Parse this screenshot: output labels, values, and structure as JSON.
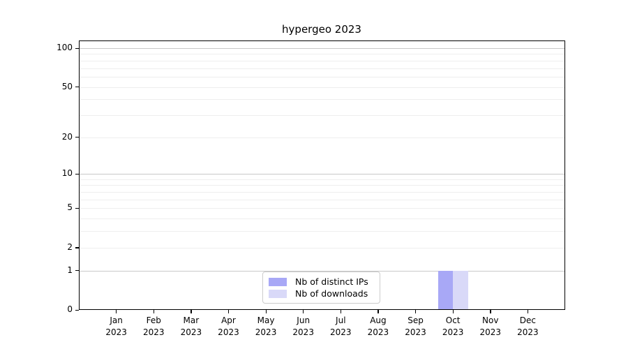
{
  "title": "hypergeo 2023",
  "colors": {
    "background": "#ffffff",
    "axis": "#000000",
    "text": "#000000",
    "grid_major": "#c8c8c8",
    "grid_minor": "#eeeeee",
    "legend_border": "#cccccc"
  },
  "chart_data": {
    "type": "bar",
    "title": "hypergeo 2023",
    "xlabel": "",
    "ylabel": "",
    "yscale": "log1p",
    "ylim": [
      0,
      100
    ],
    "categories": [
      "Jan 2023",
      "Feb 2023",
      "Mar 2023",
      "Apr 2023",
      "May 2023",
      "Jun 2023",
      "Jul 2023",
      "Aug 2023",
      "Sep 2023",
      "Oct 2023",
      "Nov 2023",
      "Dec 2023"
    ],
    "series": [
      {
        "name": "Nb of distinct IPs",
        "color": "#a8a8f6",
        "values": [
          0,
          0,
          0,
          0,
          0,
          0,
          0,
          0,
          0,
          1,
          0,
          0
        ]
      },
      {
        "name": "Nb of downloads",
        "color": "#d9d9f8",
        "values": [
          0,
          0,
          0,
          0,
          0,
          0,
          0,
          0,
          0,
          1,
          0,
          0
        ]
      }
    ],
    "y_tick_values": [
      0,
      1,
      2,
      5,
      10,
      20,
      50,
      100
    ],
    "y_tick_labels": [
      "0",
      "1",
      "2",
      "5",
      "10",
      "20",
      "50",
      "100"
    ],
    "grid": {
      "major_values": [
        1,
        10,
        100
      ],
      "minor_values": [
        2,
        3,
        4,
        5,
        6,
        7,
        8,
        9,
        20,
        30,
        40,
        50,
        60,
        70,
        80,
        90
      ]
    },
    "legend": {
      "position": "lower center",
      "entries": [
        "Nb of distinct IPs",
        "Nb of downloads"
      ]
    }
  }
}
